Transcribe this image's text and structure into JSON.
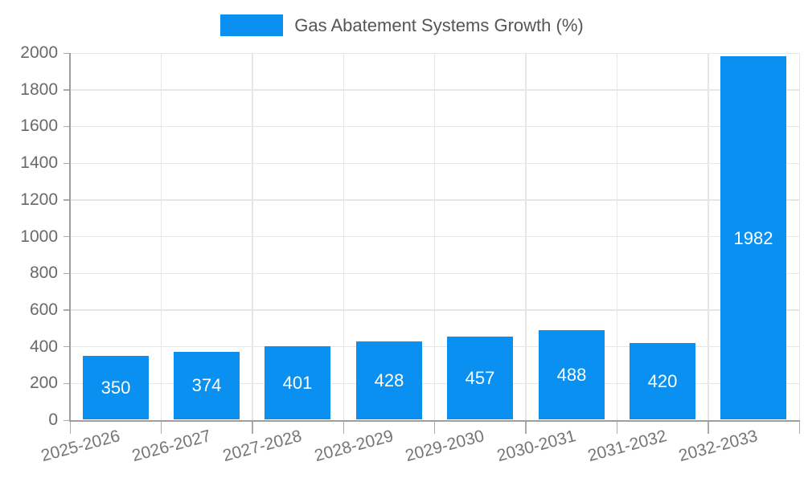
{
  "legend": {
    "label": "Gas Abatement Systems Growth (%)"
  },
  "chart_data": {
    "type": "bar",
    "title": "Gas Abatement Systems Growth (%)",
    "categories": [
      "2025-2026",
      "2026-2027",
      "2027-2028",
      "2028-2029",
      "2029-2030",
      "2030-2031",
      "2031-2032",
      "2032-2033"
    ],
    "values": [
      350,
      374,
      401,
      428,
      457,
      488,
      420,
      1982
    ],
    "data_labels": [
      "350",
      "374",
      "401",
      "428",
      "457",
      "488",
      "420",
      "1982"
    ],
    "xlabel": "",
    "ylabel": "",
    "ylim": [
      0,
      2000
    ],
    "yticks": [
      0,
      200,
      400,
      600,
      800,
      1000,
      1200,
      1400,
      1600,
      1800,
      2000
    ],
    "grid": true,
    "legend_position": "top-center",
    "bar_label_position": "center-inside"
  },
  "colors": {
    "bar": "#0a90f0",
    "grid_line": "#e6e6e6",
    "axis_line": "#9e9e9e",
    "tick_mark": "#aaaaaa",
    "y_tick_text": "#696969",
    "x_tick_text": "#757575",
    "legend_text": "#555555",
    "data_label_text": "#ffffff",
    "background": "#ffffff"
  }
}
